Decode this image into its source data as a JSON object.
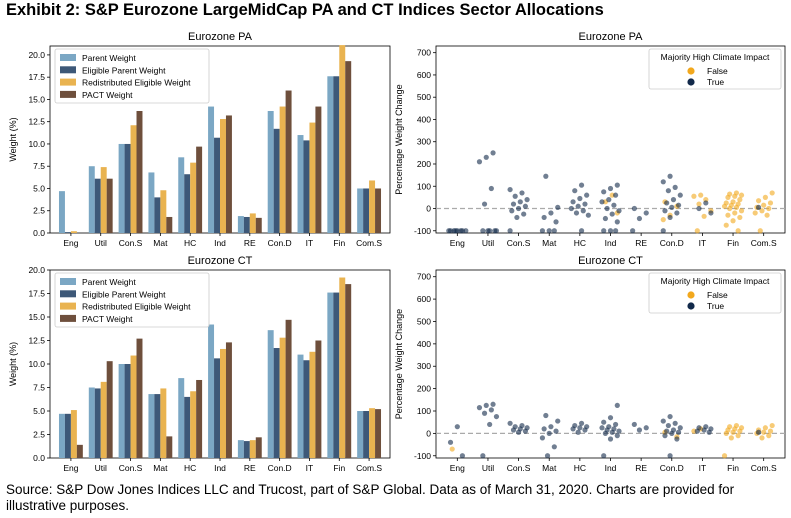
{
  "exhibit_title": "Exhibit 2: S&P Eurozone LargeMidCap PA and CT Indices Sector Allocations",
  "source_note": "Source: S&P Dow Jones Indices LLC and Trucost, part of S&P Global. Data as of March 31, 2020. Charts are provided for illustrative purposes.",
  "colors": {
    "parent": "#7BA7C4",
    "eligible_parent": "#3D5878",
    "redistributed": "#E9B350",
    "pact": "#6E4F3C",
    "false_dot": "#F2A81D",
    "true_dot": "#12294A"
  },
  "chart_data": [
    {
      "type": "bar",
      "title": "Eurozone PA",
      "xlabel": "",
      "ylabel": "Weight (%)",
      "ylim": [
        0,
        21
      ],
      "yticks": [
        "0.0",
        "2.5",
        "5.0",
        "7.5",
        "10.0",
        "12.5",
        "15.0",
        "17.5",
        "20.0"
      ],
      "legend_position": "upper-left",
      "categories": [
        "Eng",
        "Util",
        "Con.S",
        "Mat",
        "HC",
        "Ind",
        "RE",
        "Con.D",
        "IT",
        "Fin",
        "Com.S"
      ],
      "series": [
        {
          "name": "Parent Weight",
          "values": [
            4.7,
            7.5,
            10.0,
            6.8,
            8.5,
            14.2,
            1.9,
            13.7,
            11.0,
            17.6,
            5.0
          ]
        },
        {
          "name": "Eligible Parent Weight",
          "values": [
            0.1,
            6.1,
            10.0,
            4.0,
            6.6,
            10.7,
            1.8,
            11.7,
            10.4,
            17.6,
            5.0
          ]
        },
        {
          "name": "Redistributed Eligible Weight",
          "values": [
            0.2,
            7.4,
            12.1,
            4.8,
            7.9,
            12.8,
            2.2,
            14.2,
            12.4,
            21.1,
            5.9
          ]
        },
        {
          "name": "PACT Weight",
          "values": [
            0.0,
            6.1,
            13.7,
            1.8,
            9.7,
            13.2,
            1.7,
            16.0,
            14.2,
            19.3,
            5.0
          ]
        }
      ]
    },
    {
      "type": "scatter",
      "title": "Eurozone PA",
      "xlabel": "",
      "ylabel": "Percentage Weight Change",
      "ylim": [
        -110,
        730
      ],
      "yticks": [
        "-100",
        "0",
        "100",
        "200",
        "300",
        "400",
        "500",
        "600",
        "700"
      ],
      "reference_line": 0,
      "legend_position": "upper-right",
      "legend_title": "Majority High Climate Impact",
      "legend_labels": [
        "False",
        "True"
      ],
      "categories": [
        "Eng",
        "Util",
        "Con.S",
        "Mat",
        "HC",
        "Ind",
        "RE",
        "Con.D",
        "IT",
        "Fin",
        "Com.S"
      ],
      "points": {
        "Eng": {
          "true": [
            -100,
            -100,
            -100,
            -100,
            -100,
            -100,
            -100,
            -100
          ],
          "false": []
        },
        "Util": {
          "true": [
            250,
            230,
            210,
            90,
            20,
            -100,
            -100,
            -100,
            -100,
            -100
          ],
          "false": []
        },
        "Con.S": {
          "true": [
            85,
            70,
            55,
            40,
            30,
            20,
            10,
            0,
            -10,
            -25,
            -40,
            -100
          ],
          "false": []
        },
        "Mat": {
          "true": [
            145,
            5,
            -20,
            -40,
            -60,
            -100,
            -100,
            -100
          ],
          "false": []
        },
        "HC": {
          "true": [
            105,
            80,
            60,
            45,
            30,
            20,
            10,
            0,
            -10,
            -20,
            -30,
            -100
          ],
          "false": []
        },
        "Ind": {
          "true": [
            105,
            90,
            75,
            60,
            40,
            30,
            15,
            0,
            -10,
            -25,
            -45,
            -60,
            -100,
            -100,
            -100
          ],
          "false": [
            60,
            30,
            -20
          ]
        },
        "RE": {
          "true": [
            0,
            -20,
            -45,
            -100
          ],
          "false": []
        },
        "Con.D": {
          "true": [
            145,
            120,
            95,
            80,
            60,
            40,
            25,
            15,
            5,
            -10,
            -20,
            -40,
            -100
          ],
          "false": [
            30,
            10,
            -30,
            -50
          ]
        },
        "IT": {
          "true": [
            25,
            0,
            -20
          ],
          "false": [
            60,
            55,
            40,
            20,
            -10,
            -35,
            -100
          ]
        },
        "Fin": {
          "true": [],
          "false": [
            70,
            65,
            60,
            55,
            50,
            40,
            30,
            25,
            20,
            15,
            10,
            5,
            0,
            -10,
            -20,
            -30,
            -40,
            -55,
            -75,
            -100
          ]
        },
        "Com.S": {
          "true": [
            5
          ],
          "false": [
            70,
            50,
            35,
            25,
            15,
            5,
            0,
            -10,
            -20,
            -30,
            -100
          ]
        }
      }
    },
    {
      "type": "bar",
      "title": "Eurozone CT",
      "xlabel": "",
      "ylabel": "Weight (%)",
      "ylim": [
        0,
        20
      ],
      "yticks": [
        "0.0",
        "2.5",
        "5.0",
        "7.5",
        "10.0",
        "12.5",
        "15.0",
        "17.5",
        "20.0"
      ],
      "legend_position": "upper-left",
      "categories": [
        "Eng",
        "Util",
        "Con.S",
        "Mat",
        "HC",
        "Ind",
        "RE",
        "Con.D",
        "IT",
        "Fin",
        "Com.S"
      ],
      "series": [
        {
          "name": "Parent Weight",
          "values": [
            4.7,
            7.5,
            10.0,
            6.8,
            8.5,
            14.2,
            1.9,
            13.6,
            11.0,
            17.6,
            5.0
          ]
        },
        {
          "name": "Eligible Parent Weight",
          "values": [
            4.7,
            7.4,
            10.0,
            6.8,
            6.5,
            10.6,
            1.8,
            11.7,
            10.4,
            17.6,
            5.0
          ]
        },
        {
          "name": "Redistributed Eligible Weight",
          "values": [
            5.1,
            8.1,
            10.9,
            7.4,
            7.1,
            11.6,
            1.9,
            12.8,
            11.3,
            19.2,
            5.3
          ]
        },
        {
          "name": "PACT Weight",
          "values": [
            1.4,
            10.3,
            12.7,
            2.3,
            8.3,
            12.3,
            2.2,
            14.7,
            12.5,
            18.5,
            5.2
          ]
        }
      ]
    },
    {
      "type": "scatter",
      "title": "Eurozone CT",
      "xlabel": "",
      "ylabel": "Percentage Weight Change",
      "ylim": [
        -110,
        730
      ],
      "yticks": [
        "-100",
        "0",
        "100",
        "200",
        "300",
        "400",
        "500",
        "600",
        "700"
      ],
      "reference_line": 0,
      "legend_position": "upper-right",
      "legend_title": "Majority High Climate Impact",
      "legend_labels": [
        "False",
        "True"
      ],
      "categories": [
        "Eng",
        "Util",
        "Con.S",
        "Mat",
        "HC",
        "Ind",
        "RE",
        "Con.D",
        "IT",
        "Fin",
        "Com.S"
      ],
      "points": {
        "Eng": {
          "true": [
            30,
            -40,
            -100
          ],
          "false": [
            -70
          ]
        },
        "Util": {
          "true": [
            130,
            125,
            115,
            105,
            90,
            75,
            40,
            -100
          ],
          "false": []
        },
        "Con.S": {
          "true": [
            45,
            35,
            30,
            25,
            20,
            15,
            10,
            5
          ],
          "false": []
        },
        "Mat": {
          "true": [
            80,
            55,
            30,
            20,
            10,
            0,
            -20,
            -60,
            -100
          ],
          "false": []
        },
        "HC": {
          "true": [
            45,
            35,
            30,
            25,
            20,
            15,
            5
          ],
          "false": []
        },
        "Ind": {
          "true": [
            125,
            70,
            50,
            40,
            30,
            25,
            20,
            15,
            10,
            5,
            0,
            -10,
            -25,
            -100
          ],
          "false": []
        },
        "RE": {
          "true": [
            40,
            25,
            15
          ],
          "false": []
        },
        "Con.D": {
          "true": [
            75,
            55,
            45,
            35,
            25,
            15,
            10,
            5,
            0,
            -10,
            -25,
            -100
          ],
          "false": [
            5,
            -15
          ]
        },
        "IT": {
          "true": [
            30,
            25,
            20,
            15,
            10,
            5
          ],
          "false": [
            20,
            10
          ]
        },
        "Fin": {
          "true": [],
          "false": [
            35,
            30,
            25,
            20,
            15,
            10,
            5,
            0,
            -10,
            -20,
            -100
          ]
        },
        "Com.S": {
          "true": [
            5
          ],
          "false": [
            35,
            25,
            15,
            10,
            5,
            0,
            -10,
            -20
          ]
        }
      }
    }
  ]
}
